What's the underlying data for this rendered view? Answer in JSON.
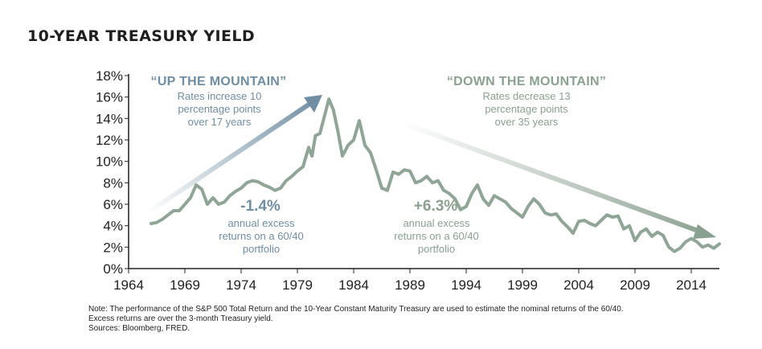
{
  "title": "10-YEAR TREASURY YIELD",
  "annotations": {
    "up_title": "“UP THE MOUNTAIN”",
    "up_lines": [
      "Rates increase 10",
      "percentage points",
      "over 17 years"
    ],
    "down_title": "“DOWN THE MOUNTAIN”",
    "down_lines": [
      "Rates decrease 13",
      "percentage points",
      "over 35 years"
    ],
    "left_value": "-1.4%",
    "left_lines": [
      "annual excess",
      "returns on a 60/40",
      "portfolio"
    ],
    "right_value": "+6.3%",
    "right_lines": [
      "annual excess",
      "returns on a 60/40",
      "portfolio"
    ]
  },
  "notes": [
    "Note: The performance of the S&P 500 Total Return and the 10-Year Constant Maturity Treasury are used to estimate the nominal returns of the 60/40.",
    "Excess returns are over the 3-month Treasury yield.",
    "Sources: Bloomberg, FRED."
  ],
  "colors": {
    "line": "#8fa595",
    "up": "#6f8ea3",
    "down": "#8aa090",
    "axis": "#222222"
  },
  "chart_data": {
    "type": "line",
    "title": "10-YEAR TREASURY YIELD",
    "xlabel": "",
    "ylabel": "",
    "xlim": [
      1964,
      2016.5
    ],
    "ylim": [
      0,
      18
    ],
    "x_ticks": [
      1964,
      1969,
      1974,
      1979,
      1984,
      1989,
      1994,
      1999,
      2004,
      2009,
      2014
    ],
    "y_ticks": [
      0,
      2,
      4,
      6,
      8,
      10,
      12,
      14,
      16,
      18
    ],
    "y_tick_labels": [
      "0%",
      "2%",
      "4%",
      "6%",
      "8%",
      "10%",
      "12%",
      "14%",
      "16%",
      "18%"
    ],
    "grid": false,
    "series": [
      {
        "x": [
          1966.0,
          1966.5,
          1967.0,
          1967.5,
          1968.0,
          1968.5,
          1969.0,
          1969.5,
          1970.0,
          1970.5,
          1971.0,
          1971.5,
          1972.0,
          1972.5,
          1973.0,
          1973.5,
          1974.0,
          1974.5,
          1975.0,
          1975.5,
          1976.0,
          1976.5,
          1977.0,
          1977.5,
          1978.0,
          1978.5,
          1979.0,
          1979.5,
          1980.0,
          1980.3,
          1980.6,
          1981.0,
          1981.5,
          1981.8,
          1982.2,
          1982.6,
          1983.0,
          1983.5,
          1984.0,
          1984.5,
          1985.0,
          1985.5,
          1986.0,
          1986.5,
          1987.0,
          1987.5,
          1988.0,
          1988.5,
          1989.0,
          1989.5,
          1990.0,
          1990.5,
          1991.0,
          1991.5,
          1992.0,
          1992.5,
          1993.0,
          1993.5,
          1994.0,
          1994.5,
          1995.0,
          1995.5,
          1996.0,
          1996.5,
          1997.0,
          1997.5,
          1998.0,
          1998.5,
          1999.0,
          1999.5,
          2000.0,
          2000.5,
          2001.0,
          2001.5,
          2002.0,
          2002.5,
          2003.0,
          2003.5,
          2004.0,
          2004.5,
          2005.0,
          2005.5,
          2006.0,
          2006.5,
          2007.0,
          2007.5,
          2008.0,
          2008.5,
          2009.0,
          2009.5,
          2010.0,
          2010.5,
          2011.0,
          2011.5,
          2012.0,
          2012.5,
          2013.0,
          2013.5,
          2014.0,
          2014.5,
          2015.0,
          2015.5,
          2016.0,
          2016.5
        ],
        "values": [
          4.2,
          4.3,
          4.6,
          5.0,
          5.4,
          5.4,
          6.0,
          6.6,
          7.8,
          7.4,
          6.0,
          6.6,
          6.0,
          6.2,
          6.8,
          7.2,
          7.5,
          8.0,
          8.2,
          8.1,
          7.8,
          7.6,
          7.3,
          7.5,
          8.2,
          8.6,
          9.1,
          9.5,
          11.3,
          10.5,
          12.4,
          12.6,
          14.6,
          15.8,
          14.8,
          12.8,
          10.5,
          11.5,
          12.0,
          13.8,
          11.5,
          10.8,
          9.2,
          7.5,
          7.3,
          9.0,
          8.8,
          9.2,
          9.1,
          8.0,
          8.2,
          8.6,
          8.0,
          8.2,
          7.3,
          7.0,
          6.5,
          5.5,
          5.8,
          7.0,
          7.8,
          6.5,
          5.9,
          6.8,
          6.5,
          6.2,
          5.6,
          5.2,
          4.8,
          5.8,
          6.5,
          6.0,
          5.2,
          5.0,
          5.1,
          4.4,
          3.9,
          3.3,
          4.4,
          4.5,
          4.2,
          4.0,
          4.5,
          5.0,
          4.8,
          4.9,
          3.7,
          4.0,
          2.6,
          3.4,
          3.7,
          3.0,
          3.4,
          3.1,
          2.0,
          1.6,
          1.9,
          2.5,
          2.8,
          2.5,
          2.0,
          2.2,
          1.9,
          2.3
        ]
      }
    ]
  }
}
